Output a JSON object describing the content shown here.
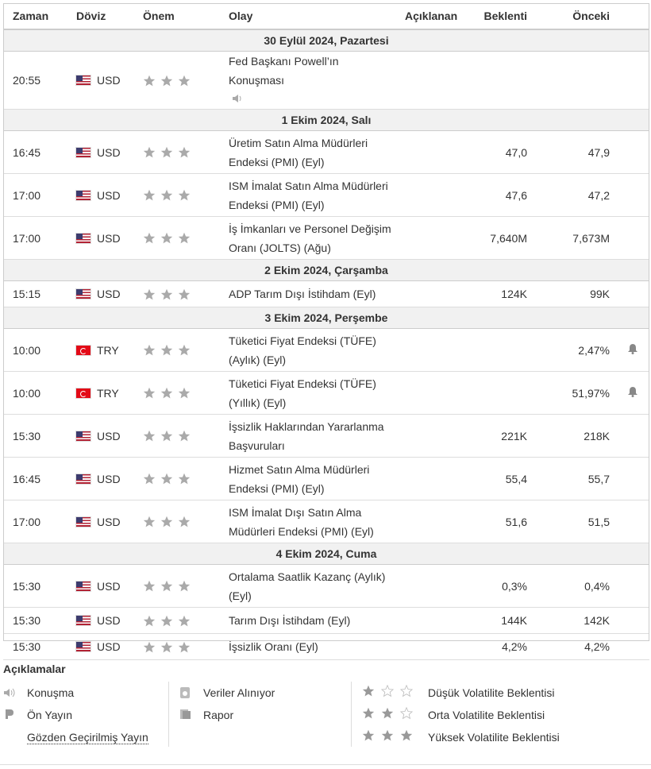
{
  "header": {
    "columns": [
      "Zaman",
      "Döviz",
      "Önem",
      "Olay",
      "Açıklanan",
      "Beklenti",
      "Önceki"
    ]
  },
  "days": [
    {
      "date": "30 Eylül 2024, Pazartesi",
      "events": [
        {
          "time": "20:55",
          "currency": "USD",
          "event": "Fed Başkanı Powell’ın Konuşması"
        }
      ]
    },
    {
      "date": "1 Ekim 2024, Salı",
      "events": [
        {
          "time": "16:45",
          "currency": "USD",
          "event": "Üretim Satın Alma Müdürleri Endeksi (PMI) (Eyl)",
          "forecast": "47,0",
          "previous": "47,9"
        },
        {
          "time": "17:00",
          "currency": "USD",
          "event": "ISM İmalat Satın Alma Müdürleri Endeksi (PMI) (Eyl)",
          "forecast": "47,6",
          "previous": "47,2"
        },
        {
          "time": "17:00",
          "currency": "USD",
          "event": "İş İmkanları ve Personel Değişim Oranı (JOLTS) (Ağu)",
          "forecast": "7,640M",
          "previous": "7,673M"
        }
      ]
    },
    {
      "date": "2 Ekim 2024, Çarşamba",
      "events": [
        {
          "time": "15:15",
          "currency": "USD",
          "event": "ADP Tarım Dışı İstihdam (Eyl)",
          "forecast": "124K",
          "previous": "99K"
        }
      ]
    },
    {
      "date": "3 Ekim 2024, Perşembe",
      "events": [
        {
          "time": "10:00",
          "currency": "TRY",
          "event": "Tüketici Fiyat Endeksi (TÜFE) (Aylık) (Eyl)",
          "previous": "2,47%"
        },
        {
          "time": "10:00",
          "currency": "TRY",
          "event": "Tüketici Fiyat Endeksi (TÜFE) (Yıllık) (Eyl)",
          "previous": "51,97%"
        },
        {
          "time": "15:30",
          "currency": "USD",
          "event": "İşsizlik Haklarından Yararlanma Başvuruları",
          "forecast": "221K",
          "previous": "218K"
        },
        {
          "time": "16:45",
          "currency": "USD",
          "event": "Hizmet Satın Alma Müdürleri Endeksi (PMI) (Eyl)",
          "forecast": "55,4",
          "previous": "55,7"
        },
        {
          "time": "17:00",
          "currency": "USD",
          "event": "ISM İmalat Dışı Satın Alma Müdürleri Endeksi (PMI) (Eyl)",
          "forecast": "51,6",
          "previous": "51,5"
        }
      ]
    },
    {
      "date": "4 Ekim 2024, Cuma",
      "events": [
        {
          "time": "15:30",
          "currency": "USD",
          "event": "Ortalama Saatlik Kazanç (Aylık) (Eyl)",
          "forecast": "0,3%",
          "previous": "0,4%"
        },
        {
          "time": "15:30",
          "currency": "USD",
          "event": "Tarım Dışı İstihdam (Eyl)",
          "forecast": "144K",
          "previous": "142K"
        },
        {
          "time": "15:30",
          "currency": "USD",
          "event": "İşsizlik Oranı (Eyl)",
          "forecast": "4,2%",
          "previous": "4,2%"
        }
      ]
    }
  ],
  "legend": {
    "title": "Açıklamalar",
    "items": [
      "Konuşma",
      "Ön Yayın",
      "Gözden Geçirilmiş Yayın",
      "Veriler Alınıyor",
      "Rapor",
      "Düşük Volatilite Beklentisi",
      "Orta Volatilite Beklentisi",
      "Yüksek Volatilite Beklentisi"
    ]
  }
}
